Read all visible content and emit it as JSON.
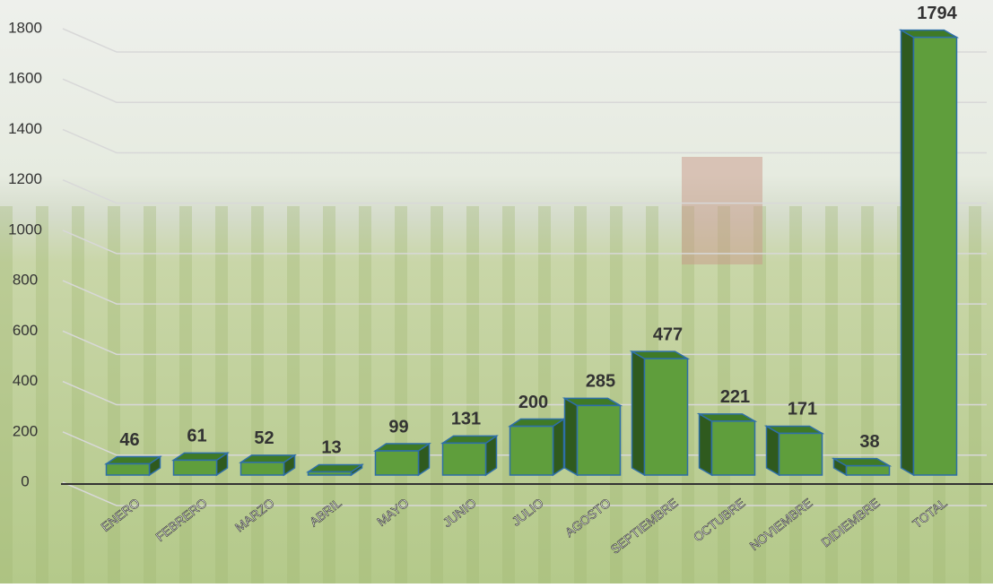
{
  "chart_data": {
    "type": "bar3d",
    "categories": [
      "ENERO",
      "FEBRERO",
      "MARZO",
      "ABRIL",
      "MAYO",
      "JUNIO",
      "JULIO",
      "AGOSTO",
      "SEPTIEMBRE",
      "OCTUBRE",
      "NOVIEMBRE",
      "DIDIEMBRE",
      "TOTAL"
    ],
    "values": [
      46,
      61,
      52,
      13,
      99,
      131,
      200,
      285,
      477,
      221,
      171,
      38,
      1794
    ],
    "color": "#5f9e3c",
    "ylim": [
      0,
      1800
    ],
    "yticks": [
      0,
      200,
      400,
      600,
      800,
      1000,
      1200,
      1400,
      1600,
      1800
    ],
    "grid": true
  }
}
